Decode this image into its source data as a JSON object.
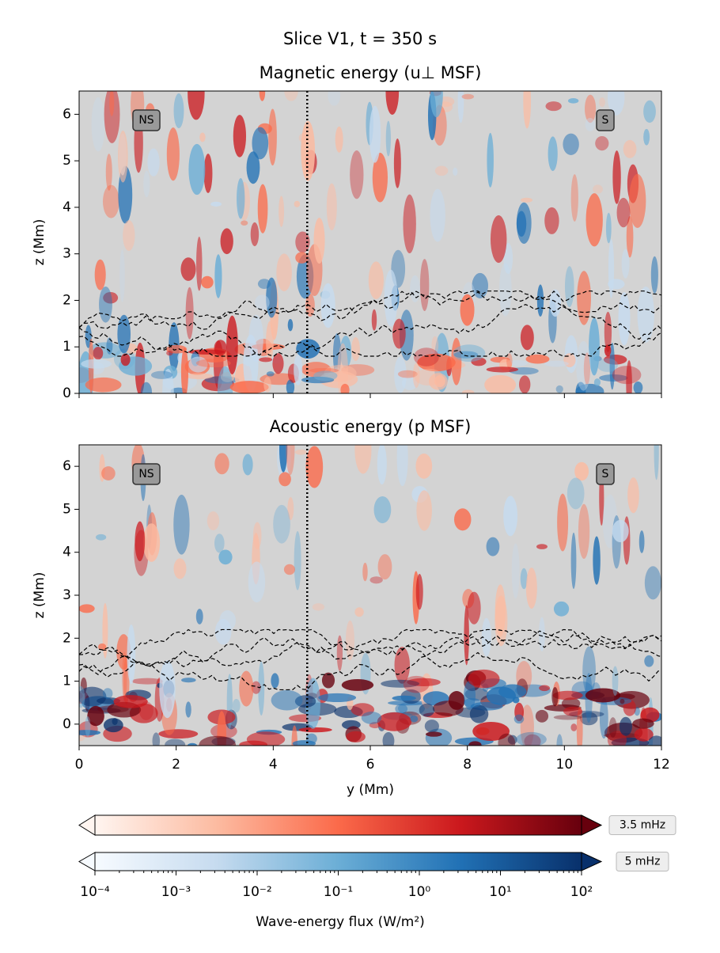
{
  "title": "Slice V1, t = 350 s",
  "chart_data": [
    {
      "type": "heatmap",
      "title": "Magnetic energy (u⊥ MSF)",
      "ylabel": "z (Mm)",
      "xlim": [
        0,
        12
      ],
      "ylim": [
        0,
        6.5
      ],
      "xticks": [
        0,
        2,
        4,
        6,
        8,
        10,
        12
      ],
      "yticks": [
        0,
        1,
        2,
        3,
        4,
        5,
        6
      ],
      "xticklabels": false,
      "vline": 4.7,
      "annotations": [
        "NS",
        "S"
      ],
      "background": "#d3d3d3"
    },
    {
      "type": "heatmap",
      "title": "Acoustic energy (p MSF)",
      "ylabel": "z (Mm)",
      "xlabel": "y (Mm)",
      "xlim": [
        0,
        12
      ],
      "ylim": [
        -0.5,
        6.5
      ],
      "xticks": [
        0,
        2,
        4,
        6,
        8,
        10,
        12
      ],
      "yticks": [
        0,
        1,
        2,
        3,
        4,
        5,
        6
      ],
      "xticklabels": true,
      "vline": 4.7,
      "annotations": [
        "NS",
        "S"
      ],
      "background": "#d3d3d3"
    }
  ],
  "colorbar": {
    "label": "Wave-energy flux (W/m²)",
    "log": true,
    "lim": [
      0.0001,
      100
    ],
    "ticks": [
      {
        "value": 0.0001,
        "label": "10⁻⁴"
      },
      {
        "value": 0.001,
        "label": "10⁻³"
      },
      {
        "value": 0.01,
        "label": "10⁻²"
      },
      {
        "value": 0.1,
        "label": "10⁻¹"
      },
      {
        "value": 1,
        "label": "10⁰"
      },
      {
        "value": 10,
        "label": "10¹"
      },
      {
        "value": 100,
        "label": "10²"
      }
    ],
    "series": [
      {
        "name": "3.5 mHz",
        "colors": [
          "#fff5f0",
          "#fcbba1",
          "#fb6a4a",
          "#cb181d",
          "#67000d"
        ]
      },
      {
        "name": "5 mHz",
        "colors": [
          "#f7fbff",
          "#c6dbef",
          "#6baed6",
          "#2171b5",
          "#08306b"
        ]
      }
    ]
  }
}
